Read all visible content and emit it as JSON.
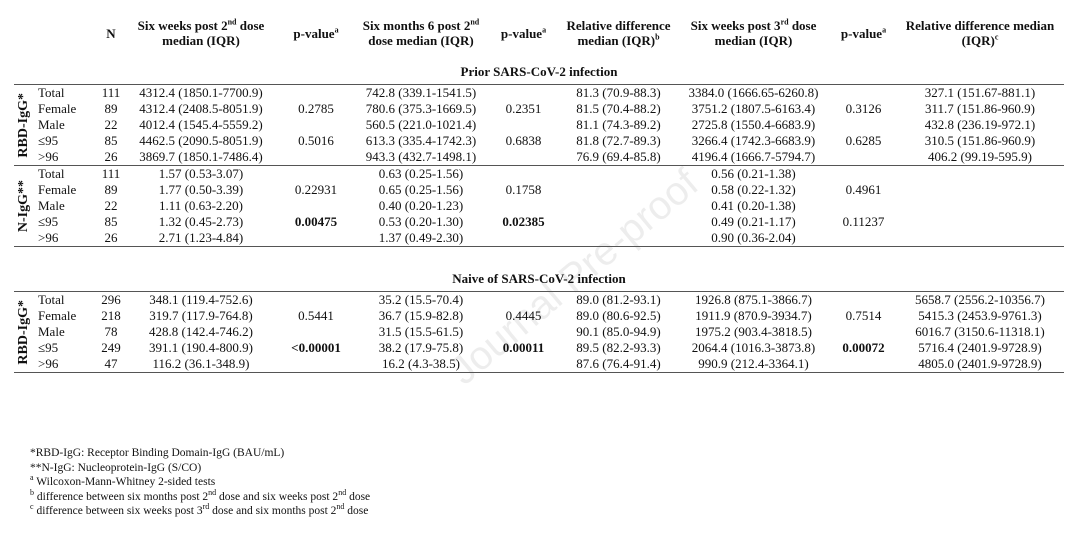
{
  "watermark": "Journal Pre-proof",
  "header": [
    [
      "N"
    ],
    [
      "Six weeks post 2",
      {
        "sup": "nd"
      },
      " dose median (IQR)"
    ],
    [
      "p-value",
      {
        "sup": "a"
      }
    ],
    [
      "Six months 6 post 2",
      {
        "sup": "nd"
      },
      " dose median (IQR)"
    ],
    [
      "p-value",
      {
        "sup": "a"
      }
    ],
    [
      "Relative difference median (IQR)",
      {
        "sup": "b"
      }
    ],
    [
      "Six weeks post 3",
      {
        "sup": "rd"
      },
      " dose median (IQR)"
    ],
    [
      "p-value",
      {
        "sup": "a"
      }
    ],
    [
      "Relative difference median (IQR)",
      {
        "sup": "c"
      }
    ]
  ],
  "sections": [
    {
      "title": "Prior SARS-CoV-2 infection",
      "groups": [
        {
          "label": "RBD-IgG*",
          "rows": [
            {
              "label": "Total",
              "n": 111,
              "cells": [
                "4312.4 (1850.1-7700.9)",
                null,
                "742.8 (339.1-1541.5)",
                null,
                "81.3 (70.9-88.3)",
                "3384.0 (1666.65-6260.8)",
                null,
                "327.1 (151.67-881.1)"
              ]
            },
            {
              "label": "Female",
              "n": 89,
              "cells": [
                "4312.4 (2408.5-8051.9)",
                "0.2785",
                "780.6 (375.3-1669.5)",
                "0.2351",
                "81.5 (70.4-88.2)",
                "3751.2 (1807.5-6163.4)",
                "0.3126",
                "311.7 (151.86-960.9)"
              ]
            },
            {
              "label": "Male",
              "n": 22,
              "cells": [
                "4012.4 (1545.4-5559.2)",
                null,
                "560.5 (221.0-1021.4)",
                null,
                "81.1 (74.3-89.2)",
                "2725.8 (1550.4-6683.9)",
                null,
                "432.8 (236.19-972.1)"
              ]
            },
            {
              "label": "≤95",
              "n": 85,
              "cells": [
                "4462.5 (2090.5-8051.9)",
                "0.5016",
                "613.3 (335.4-1742.3)",
                "0.6838",
                "81.8 (72.7-89.3)",
                "3266.4 (1742.3-6683.9)",
                "0.6285",
                "310.5 (151.86-960.9)"
              ]
            },
            {
              "label": ">96",
              "n": 26,
              "cells": [
                "3869.7 (1850.1-7486.4)",
                null,
                "943.3 (432.7-1498.1)",
                null,
                "76.9 (69.4-85.8)",
                "4196.4 (1666.7-5794.7)",
                null,
                "406.2 (99.19-595.9)"
              ]
            }
          ]
        },
        {
          "label": "N-IgG**",
          "rows": [
            {
              "label": "Total",
              "n": 111,
              "cells": [
                "1.57 (0.53-3.07)",
                null,
                "0.63 (0.25-1.56)",
                null,
                null,
                "0.56 (0.21-1.38)",
                null,
                null
              ]
            },
            {
              "label": "Female",
              "n": 89,
              "cells": [
                "1.77 (0.50-3.39)",
                "0.22931",
                "0.65 (0.25-1.56)",
                "0.1758",
                null,
                "0.58 (0.22-1.32)",
                "0.4961",
                null
              ]
            },
            {
              "label": "Male",
              "n": 22,
              "cells": [
                "1.11 (0.63-2.20)",
                null,
                "0.40 (0.20-1.23)",
                null,
                null,
                "0.41 (0.20-1.38)",
                null,
                null
              ]
            },
            {
              "label": "≤95",
              "n": 85,
              "cells": [
                "1.32 (0.45-2.73)",
                {
                  "text": "0.00475",
                  "bold": true
                },
                "0.53 (0.20-1.30)",
                {
                  "text": "0.02385",
                  "bold": true
                },
                null,
                "0.49 (0.21-1.17)",
                "0.11237",
                null
              ]
            },
            {
              "label": ">96",
              "n": 26,
              "cells": [
                "2.71 (1.23-4.84)",
                null,
                "1.37 (0.49-2.30)",
                null,
                null,
                "0.90 (0.36-2.04)",
                null,
                null
              ]
            }
          ]
        }
      ]
    },
    {
      "title": "Naive of SARS-CoV-2 infection",
      "groups": [
        {
          "label": "RBD-IgG*",
          "rows": [
            {
              "label": "Total",
              "n": 296,
              "cells": [
                "348.1 (119.4-752.6)",
                null,
                "35.2 (15.5-70.4)",
                null,
                "89.0 (81.2-93.1)",
                "1926.8 (875.1-3866.7)",
                null,
                "5658.7 (2556.2-10356.7)"
              ]
            },
            {
              "label": "Female",
              "n": 218,
              "cells": [
                "319.7 (117.9-764.8)",
                "0.5441",
                "36.7 (15.9-82.8)",
                "0.4445",
                "89.0 (80.6-92.5)",
                "1911.9 (870.9-3934.7)",
                "0.7514",
                "5415.3 (2453.9-9761.3)"
              ]
            },
            {
              "label": "Male",
              "n": 78,
              "cells": [
                "428.8 (142.4-746.2)",
                null,
                "31.5 (15.5-61.5)",
                null,
                "90.1 (85.0-94.9)",
                "1975.2 (903.4-3818.5)",
                null,
                "6016.7 (3150.6-11318.1)"
              ]
            },
            {
              "label": "≤95",
              "n": 249,
              "cells": [
                "391.1 (190.4-800.9)",
                {
                  "text": "<0.00001",
                  "bold": true
                },
                "38.2 (17.9-75.8)",
                {
                  "text": "0.00011",
                  "bold": true
                },
                "89.5 (82.2-93.3)",
                "2064.4 (1016.3-3873.8)",
                {
                  "text": "0.00072",
                  "bold": true
                },
                "5716.4 (2401.9-9728.9)"
              ]
            },
            {
              "label": ">96",
              "n": 47,
              "cells": [
                "116.2  (36.1-348.9)",
                null,
                "16.2 (4.3-38.5)",
                null,
                "87.6 (76.4-91.4)",
                "990.9 (212.4-3364.1)",
                null,
                "4805.0 (2401.9-9728.9)"
              ]
            }
          ]
        }
      ]
    }
  ],
  "footnotes": [
    [
      "*RBD-IgG: Receptor Binding Domain-IgG (BAU/mL)"
    ],
    [
      "**N-IgG: Nucleoprotein-IgG (S/CO)"
    ],
    [
      {
        "sup": "a"
      },
      " Wilcoxon-Mann-Whitney 2-sided tests"
    ],
    [
      {
        "sup": "b"
      },
      " difference between six months post 2",
      {
        "sup": "nd"
      },
      " dose and six weeks post 2",
      {
        "sup": "nd"
      },
      " dose"
    ],
    [
      {
        "sup": "c"
      },
      " difference between six weeks post 3",
      {
        "sup": "rd"
      },
      " dose and six months post 2",
      {
        "sup": "nd"
      },
      " dose"
    ]
  ]
}
